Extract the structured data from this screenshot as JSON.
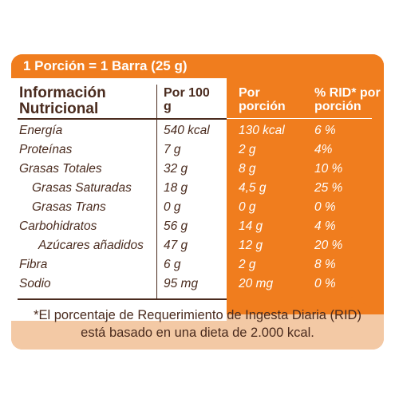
{
  "header": {
    "serving": "1 Porción = 1 Barra (25 g)"
  },
  "columns": {
    "info": "Información Nutricional",
    "per100": "Por 100 g",
    "perServing": "Por porción",
    "rid": "% RID* por porción"
  },
  "rows": [
    {
      "name": "Energía",
      "per100": "540 kcal",
      "perServing": "130 kcal",
      "rid": "6 %"
    },
    {
      "name": "Proteínas",
      "per100": "7 g",
      "perServing": "2 g",
      "rid": "4%"
    },
    {
      "name": "Grasas Totales",
      "per100": "32 g",
      "perServing": "8 g",
      "rid": "10 %"
    },
    {
      "name": "Grasas Saturadas",
      "per100": "18 g",
      "perServing": "4,5 g",
      "rid": "25 %"
    },
    {
      "name": "Grasas Trans",
      "per100": "0 g",
      "perServing": "0 g",
      "rid": "0 %"
    },
    {
      "name": "Carbohidratos",
      "per100": "56 g",
      "perServing": "14 g",
      "rid": "4 %"
    },
    {
      "name": "Azúcares añadidos",
      "per100": "47 g",
      "perServing": "12 g",
      "rid": "20 %"
    },
    {
      "name": "Fibra",
      "per100": "6 g",
      "perServing": "2 g",
      "rid": "8 %"
    },
    {
      "name": "Sodio",
      "per100": "95 mg",
      "perServing": "20 mg",
      "rid": "0 %"
    }
  ],
  "footnote": {
    "line1": "*El porcentaje de Requerimiento de Ingesta Diaria (RID)",
    "line2": "está basado en una dieta de 2.000 kcal."
  },
  "colors": {
    "orange": "#f07d1e",
    "brown": "#4a2b1e",
    "footer": "#f3c9a5"
  }
}
